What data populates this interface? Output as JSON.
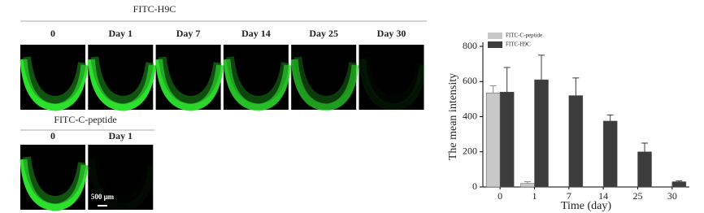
{
  "panels": [
    {
      "title": "FITC-H9C",
      "columns": [
        "0",
        "Day 1",
        "Day 7",
        "Day 14",
        "Day 25",
        "Day 30"
      ]
    },
    {
      "title": "FITC-C-peptide",
      "columns": [
        "0",
        "Day 1"
      ]
    }
  ],
  "scale_bar": "500 μm",
  "chart_data": {
    "type": "bar",
    "x_label": "Time (day)",
    "y_label": "The mean intensity",
    "categories": [
      "0",
      "1",
      "7",
      "14",
      "25",
      "30"
    ],
    "series": [
      {
        "name": "FITC-C-peptide",
        "color": "#c8c8c8",
        "values": [
          535,
          20,
          null,
          null,
          null,
          null
        ],
        "errors": [
          40,
          10,
          null,
          null,
          null,
          null
        ]
      },
      {
        "name": "FITC-H9C",
        "color": "#3c3c3c",
        "values": [
          540,
          610,
          520,
          375,
          200,
          30
        ],
        "errors": [
          140,
          140,
          100,
          35,
          50,
          5
        ]
      }
    ],
    "ylim": [
      0,
      800
    ],
    "yticks": [
      0,
      200,
      400,
      600,
      800
    ],
    "legend": "upper left"
  }
}
